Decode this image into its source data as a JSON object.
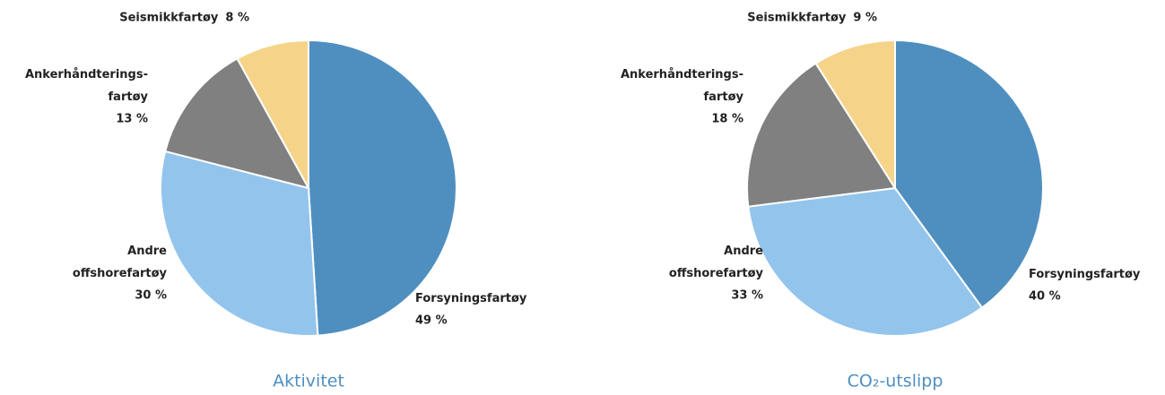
{
  "chart_data": [
    {
      "type": "pie",
      "title": "Aktivitet",
      "categories": [
        "Forsyningsfartøy",
        "Andre\noffshorefartøy",
        "Ankerhåndterings-\nfartøy",
        "Seismikkfartøy"
      ],
      "values": [
        49,
        30,
        13,
        8
      ],
      "value_labels": [
        "49 %",
        "30 %",
        "13 %",
        "8 %"
      ],
      "colors": [
        "#4f8fc0",
        "#93c4ec",
        "#808080",
        "#f5d48a"
      ]
    },
    {
      "type": "pie",
      "title": "CO₂-utslipp",
      "categories": [
        "Forsyningsfartøy",
        "Andre\noffshorefartøy",
        "Ankerhåndterings-\nfartøy",
        "Seismikkfartøy"
      ],
      "values": [
        40,
        33,
        18,
        9
      ],
      "value_labels": [
        "40 %",
        "33 %",
        "18 %",
        "9 %"
      ],
      "colors": [
        "#4f8fc0",
        "#93c4ec",
        "#808080",
        "#f5d48a"
      ]
    }
  ]
}
